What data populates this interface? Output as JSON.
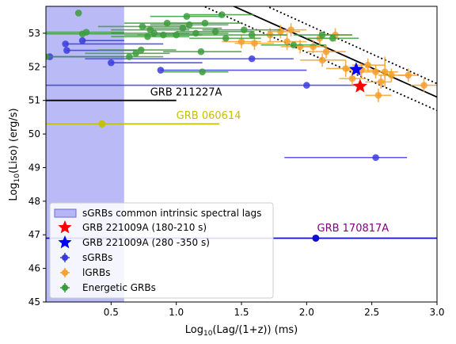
{
  "chart_data": {
    "type": "scatter",
    "xlabel_main": "Log",
    "xlabel_sub": "10",
    "xlabel_rest": "(Lag/(1+z)) (ms)",
    "ylabel_main": "Log",
    "ylabel_sub": "10",
    "ylabel_rest": "(Liso) (erg/s)",
    "xlim": [
      0.0,
      3.0
    ],
    "ylim": [
      45.0,
      53.8
    ],
    "xticks": [
      0.5,
      1.0,
      1.5,
      2.0,
      2.5,
      3.0
    ],
    "xtick_labels": [
      "0.5",
      "1.0",
      "1.5",
      "2.0",
      "2.5",
      "3.0"
    ],
    "yticks": [
      45,
      46,
      47,
      48,
      49,
      50,
      51,
      52,
      53
    ],
    "ytick_labels": [
      "45",
      "46",
      "47",
      "48",
      "49",
      "50",
      "51",
      "52",
      "53"
    ],
    "grid": false,
    "legend_position": "lower-left",
    "shaded_region": {
      "x": [
        0.0,
        0.6
      ],
      "color": "#8c8cf2",
      "label": "sGRBs common intrinsic spectral lags"
    },
    "fit_lines": [
      {
        "style": "solid",
        "color": "#000000",
        "x": [
          0.0,
          3.0
        ],
        "y": [
          56.3,
          51.1
        ]
      },
      {
        "style": "dotted",
        "color": "#000000",
        "x": [
          0.0,
          3.0
        ],
        "y": [
          56.8,
          51.5
        ]
      },
      {
        "style": "dotted",
        "color": "#000000",
        "x": [
          0.0,
          3.0
        ],
        "y": [
          55.9,
          50.7
        ]
      }
    ],
    "named_bursts": [
      {
        "name": "GRB 211227A",
        "x": 0.0,
        "y": 51.0,
        "xerr_low": 0.0,
        "xerr_high": 1.0,
        "color": "#000000",
        "label_x": 0.8,
        "label_y": 51.1,
        "label_color": "#000000",
        "marker": false
      },
      {
        "name": "GRB 060614",
        "x": 0.43,
        "y": 50.3,
        "xerr_low": 0.43,
        "xerr_high": 0.9,
        "color": "#c7c000",
        "label_x": 1.0,
        "label_y": 50.4,
        "label_color": "#c7c000",
        "marker": true
      },
      {
        "name": "GRB 170817A",
        "x": 2.07,
        "y": 46.9,
        "xerr_low": 2.07,
        "xerr_high": 2.4,
        "color": "#1010d0",
        "label_x": 2.08,
        "label_y": 47.05,
        "label_color": "#800080",
        "marker": true
      }
    ],
    "series": [
      {
        "name": "GRB 221009A (180-210 s)",
        "marker": "star",
        "color": "#ff0000",
        "points": [
          {
            "x": 2.41,
            "y": 51.42
          }
        ]
      },
      {
        "name": "GRB 221009A (280 -350 s)",
        "marker": "star",
        "color": "#0000ff",
        "points": [
          {
            "x": 2.38,
            "y": 51.92
          }
        ]
      },
      {
        "name": "sGRBs",
        "marker": "circle",
        "color": "#3b3bdd",
        "points": [
          {
            "x": 0.03,
            "y": 52.3,
            "xlo": 0.03,
            "xhi": 0.6
          },
          {
            "x": 0.15,
            "y": 52.68,
            "xlo": 0.15,
            "xhi": 0.9
          },
          {
            "x": 0.16,
            "y": 52.49,
            "xlo": 0.16,
            "xhi": 0.7
          },
          {
            "x": 0.28,
            "y": 52.78,
            "xlo": 0.28,
            "xhi": 0.6
          },
          {
            "x": 0.5,
            "y": 52.12,
            "xlo": 0.5,
            "xhi": 1.2
          },
          {
            "x": 0.88,
            "y": 51.9,
            "xlo": 0.88,
            "xhi": 2.0
          },
          {
            "x": 1.58,
            "y": 52.24,
            "xlo": 0.3,
            "xhi": 1.9
          },
          {
            "x": 2.0,
            "y": 51.45,
            "xlo": 0.0,
            "xhi": 2.4
          },
          {
            "x": 2.53,
            "y": 49.3,
            "xlo": 1.83,
            "xhi": 2.77
          }
        ]
      },
      {
        "name": "lGRBs",
        "marker": "circle",
        "color": "#f5a030",
        "points": [
          {
            "x": 1.5,
            "y": 52.75,
            "xlo": 1.35,
            "xhi": 1.65,
            "ylo": 52.55,
            "yhi": 52.95
          },
          {
            "x": 1.6,
            "y": 52.7,
            "xlo": 1.45,
            "xhi": 1.75,
            "ylo": 52.5,
            "yhi": 52.9
          },
          {
            "x": 1.72,
            "y": 52.95,
            "xlo": 1.6,
            "xhi": 1.85,
            "ylo": 52.75,
            "yhi": 53.15
          },
          {
            "x": 1.8,
            "y": 53.05,
            "xlo": 1.7,
            "xhi": 1.95,
            "ylo": 52.85,
            "yhi": 53.25
          },
          {
            "x": 1.85,
            "y": 52.75,
            "xlo": 1.7,
            "xhi": 2.0,
            "ylo": 52.5,
            "yhi": 53.0
          },
          {
            "x": 1.88,
            "y": 53.1,
            "xlo": 1.75,
            "xhi": 2.0,
            "ylo": 52.9,
            "yhi": 53.3
          },
          {
            "x": 1.95,
            "y": 52.6,
            "xlo": 1.8,
            "xhi": 2.1,
            "ylo": 52.4,
            "yhi": 52.8
          },
          {
            "x": 2.05,
            "y": 52.6,
            "xlo": 1.95,
            "xhi": 2.15,
            "ylo": 52.4,
            "yhi": 52.8
          },
          {
            "x": 2.1,
            "y": 52.85,
            "xlo": 2.0,
            "xhi": 2.2,
            "ylo": 52.65,
            "yhi": 53.05
          },
          {
            "x": 2.12,
            "y": 52.2,
            "xlo": 1.95,
            "xhi": 2.3,
            "ylo": 52.0,
            "yhi": 52.4
          },
          {
            "x": 2.15,
            "y": 52.45,
            "xlo": 2.0,
            "xhi": 2.3,
            "ylo": 52.25,
            "yhi": 52.65
          },
          {
            "x": 2.22,
            "y": 52.95,
            "xlo": 2.1,
            "xhi": 2.35,
            "ylo": 52.75,
            "yhi": 53.15
          },
          {
            "x": 2.3,
            "y": 51.95,
            "xlo": 2.15,
            "xhi": 2.45,
            "ylo": 51.7,
            "yhi": 52.2
          },
          {
            "x": 2.35,
            "y": 51.65,
            "xlo": 2.25,
            "xhi": 2.45,
            "ylo": 51.45,
            "yhi": 51.85
          },
          {
            "x": 2.42,
            "y": 51.9,
            "xlo": 2.3,
            "xhi": 2.55,
            "ylo": 51.7,
            "yhi": 52.1
          },
          {
            "x": 2.47,
            "y": 52.05,
            "xlo": 2.35,
            "xhi": 2.6,
            "ylo": 51.85,
            "yhi": 52.25
          },
          {
            "x": 2.53,
            "y": 51.85,
            "xlo": 2.4,
            "xhi": 2.65,
            "ylo": 51.65,
            "yhi": 52.05
          },
          {
            "x": 2.55,
            "y": 51.15,
            "xlo": 2.45,
            "xhi": 2.65,
            "ylo": 50.95,
            "yhi": 51.35
          },
          {
            "x": 2.57,
            "y": 51.55,
            "xlo": 2.45,
            "xhi": 2.65,
            "ylo": 51.35,
            "yhi": 51.75
          },
          {
            "x": 2.6,
            "y": 51.85,
            "xlo": 2.5,
            "xhi": 2.7,
            "ylo": 51.4,
            "yhi": 52.3
          },
          {
            "x": 2.65,
            "y": 51.75,
            "xlo": 2.55,
            "xhi": 2.75,
            "ylo": 51.55,
            "yhi": 51.95
          },
          {
            "x": 2.78,
            "y": 51.75,
            "xlo": 2.7,
            "xhi": 2.85,
            "ylo": 51.55,
            "yhi": 51.95
          },
          {
            "x": 2.9,
            "y": 51.45,
            "xlo": 2.8,
            "xhi": 3.0,
            "ylo": 51.25,
            "yhi": 51.65
          }
        ]
      },
      {
        "name": "Energetic GRBs",
        "marker": "circle",
        "color": "#3c9c3c",
        "points": [
          {
            "x": 0.25,
            "y": 53.6,
            "xlo": 0.25,
            "xhi": 0.25
          },
          {
            "x": 0.0,
            "y": 52.3,
            "xlo": 0.0,
            "xhi": 0.3
          },
          {
            "x": 0.28,
            "y": 52.98,
            "xlo": 0.0,
            "xhi": 0.6
          },
          {
            "x": 0.31,
            "y": 53.03,
            "xlo": 0.0,
            "xhi": 0.6
          },
          {
            "x": 0.64,
            "y": 52.3,
            "xlo": 0.3,
            "xhi": 0.9
          },
          {
            "x": 0.69,
            "y": 52.4,
            "xlo": 0.3,
            "xhi": 0.95
          },
          {
            "x": 0.73,
            "y": 52.5,
            "xlo": 0.4,
            "xhi": 1.0
          },
          {
            "x": 0.74,
            "y": 53.2,
            "xlo": 0.4,
            "xhi": 1.1
          },
          {
            "x": 0.78,
            "y": 52.9,
            "xlo": 0.5,
            "xhi": 1.1
          },
          {
            "x": 0.8,
            "y": 53.1,
            "xlo": 0.5,
            "xhi": 1.1
          },
          {
            "x": 0.83,
            "y": 53.0,
            "xlo": 0.5,
            "xhi": 1.1
          },
          {
            "x": 0.9,
            "y": 52.95,
            "xlo": 0.6,
            "xhi": 1.2
          },
          {
            "x": 0.93,
            "y": 53.3,
            "xlo": 0.6,
            "xhi": 1.2
          },
          {
            "x": 1.0,
            "y": 52.95,
            "xlo": 0.7,
            "xhi": 1.3
          },
          {
            "x": 1.05,
            "y": 53.15,
            "xlo": 0.75,
            "xhi": 1.35
          },
          {
            "x": 1.08,
            "y": 53.5,
            "xlo": 0.8,
            "xhi": 1.35
          },
          {
            "x": 1.1,
            "y": 53.25,
            "xlo": 0.8,
            "xhi": 1.4
          },
          {
            "x": 1.15,
            "y": 53.0,
            "xlo": 0.85,
            "xhi": 1.4
          },
          {
            "x": 1.19,
            "y": 52.45,
            "xlo": 0.9,
            "xhi": 1.5
          },
          {
            "x": 1.2,
            "y": 51.85,
            "xlo": 0.9,
            "xhi": 1.4
          },
          {
            "x": 1.22,
            "y": 53.3,
            "xlo": 0.95,
            "xhi": 1.5
          },
          {
            "x": 1.3,
            "y": 53.05,
            "xlo": 1.0,
            "xhi": 1.6
          },
          {
            "x": 1.35,
            "y": 53.55,
            "xlo": 1.1,
            "xhi": 1.6
          },
          {
            "x": 1.38,
            "y": 52.85,
            "xlo": 1.1,
            "xhi": 1.65
          },
          {
            "x": 1.52,
            "y": 53.1,
            "xlo": 1.2,
            "xhi": 1.8
          },
          {
            "x": 1.58,
            "y": 52.95,
            "xlo": 1.3,
            "xhi": 1.85
          },
          {
            "x": 1.9,
            "y": 52.65,
            "xlo": 1.65,
            "xhi": 2.15
          },
          {
            "x": 2.12,
            "y": 52.95,
            "xlo": 1.9,
            "xhi": 2.35
          },
          {
            "x": 2.2,
            "y": 52.85,
            "xlo": 2.0,
            "xhi": 2.4
          }
        ]
      }
    ]
  }
}
